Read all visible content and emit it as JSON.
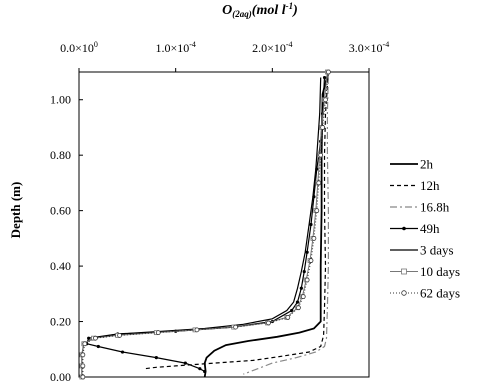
{
  "chart_data": {
    "type": "line",
    "title_main": "O",
    "title_sub": "(2aq)",
    "title_unit": "(mol l",
    "title_exp": "-1",
    "title_close": ")",
    "ylabel": "Depth (m)",
    "xlim": [
      0,
      0.0003
    ],
    "ylim": [
      0,
      1.1
    ],
    "x_ticks": [
      {
        "value": 0,
        "mant": "0.0×10",
        "exp": "0"
      },
      {
        "value": 0.0001,
        "mant": "1.0×10",
        "exp": "-4"
      },
      {
        "value": 0.0002,
        "mant": "2.0×10",
        "exp": "-4"
      },
      {
        "value": 0.0003,
        "mant": "3.0×10",
        "exp": "-4"
      }
    ],
    "y_ticks": [
      {
        "value": 0.0,
        "label": "0.00"
      },
      {
        "value": 0.2,
        "label": "0.20"
      },
      {
        "value": 0.4,
        "label": "0.40"
      },
      {
        "value": 0.6,
        "label": "0.60"
      },
      {
        "value": 0.8,
        "label": "0.80"
      },
      {
        "value": 1.0,
        "label": "1.00"
      }
    ],
    "legend_position": "right",
    "series": [
      {
        "name": "2h",
        "color": "#000000",
        "width": 1.8,
        "dash": "",
        "marker": "none",
        "points": [
          [
            0.000258,
            1.1
          ],
          [
            0.000252,
            1.02
          ],
          [
            0.000251,
            0.8
          ],
          [
            0.000251,
            0.6
          ],
          [
            0.00025,
            0.4
          ],
          [
            0.00025,
            0.25
          ],
          [
            0.00025,
            0.2
          ],
          [
            0.000243,
            0.175
          ],
          [
            0.000228,
            0.16
          ],
          [
            0.000205,
            0.145
          ],
          [
            0.000175,
            0.13
          ],
          [
            0.000152,
            0.115
          ],
          [
            0.00014,
            0.095
          ],
          [
            0.000132,
            0.07
          ],
          [
            0.00013,
            0.05
          ],
          [
            0.000131,
            0.02
          ],
          [
            0.00013,
            0.0
          ]
        ]
      },
      {
        "name": "12h",
        "color": "#000000",
        "width": 1.2,
        "dash": "4,3",
        "marker": "none",
        "points": [
          [
            0.000258,
            1.1
          ],
          [
            0.000255,
            0.95
          ],
          [
            0.000254,
            0.8
          ],
          [
            0.000254,
            0.6
          ],
          [
            0.000255,
            0.4
          ],
          [
            0.000254,
            0.25
          ],
          [
            0.000253,
            0.15
          ],
          [
            0.00025,
            0.11
          ],
          [
            0.000238,
            0.09
          ],
          [
            0.00021,
            0.075
          ],
          [
            0.00018,
            0.06
          ],
          [
            0.00014,
            0.05
          ],
          [
            0.0001,
            0.04
          ],
          [
            8e-05,
            0.035
          ],
          [
            6.8e-05,
            0.03
          ]
        ]
      },
      {
        "name": "16.8h",
        "color": "#888888",
        "width": 1.2,
        "dash": "7,3,2,3",
        "marker": "none",
        "points": [
          [
            0.000258,
            1.1
          ],
          [
            0.000257,
            0.95
          ],
          [
            0.000257,
            0.8
          ],
          [
            0.000258,
            0.6
          ],
          [
            0.000258,
            0.4
          ],
          [
            0.000257,
            0.25
          ],
          [
            0.000256,
            0.14
          ],
          [
            0.000254,
            0.11
          ],
          [
            0.000245,
            0.09
          ],
          [
            0.000225,
            0.07
          ],
          [
            0.0002,
            0.05
          ],
          [
            0.000185,
            0.03
          ],
          [
            0.00017,
            0.01
          ]
        ]
      },
      {
        "name": "49h",
        "color": "#000000",
        "width": 1.2,
        "dash": "",
        "marker": "dot",
        "points": [
          [
            0.000254,
            1.08
          ],
          [
            0.000252,
            0.95
          ],
          [
            0.00025,
            0.85
          ],
          [
            0.000246,
            0.75
          ],
          [
            0.000243,
            0.65
          ],
          [
            0.00024,
            0.55
          ],
          [
            0.000236,
            0.45
          ],
          [
            0.000233,
            0.38
          ],
          [
            0.00023,
            0.32
          ],
          [
            0.000226,
            0.27
          ],
          [
            0.00022,
            0.24
          ],
          [
            0.0002,
            0.2
          ],
          [
            0.00016,
            0.18
          ],
          [
            0.0001,
            0.165
          ],
          [
            4e-05,
            0.155
          ],
          [
            1e-05,
            0.14
          ],
          [
            8e-06,
            0.12
          ],
          [
            2e-05,
            0.11
          ],
          [
            4.5e-05,
            0.09
          ],
          [
            8e-05,
            0.07
          ],
          [
            0.00011,
            0.05
          ],
          [
            0.000125,
            0.03
          ],
          [
            0.00013,
            0.02
          ]
        ]
      },
      {
        "name": "3 days",
        "color": "#000000",
        "width": 1.2,
        "dash": "",
        "marker": "none",
        "points": [
          [
            0.00025,
            1.08
          ],
          [
            0.000249,
            0.95
          ],
          [
            0.000247,
            0.85
          ],
          [
            0.000245,
            0.75
          ],
          [
            0.000242,
            0.65
          ],
          [
            0.000238,
            0.55
          ],
          [
            0.000234,
            0.45
          ],
          [
            0.00023,
            0.38
          ],
          [
            0.000226,
            0.32
          ],
          [
            0.000222,
            0.27
          ],
          [
            0.000215,
            0.24
          ],
          [
            0.0002,
            0.21
          ],
          [
            0.00017,
            0.19
          ],
          [
            0.00013,
            0.175
          ],
          [
            8.5e-05,
            0.165
          ],
          [
            4e-05,
            0.155
          ],
          [
            1.5e-05,
            0.14
          ],
          [
            5e-06,
            0.12
          ],
          [
            3e-06,
            0.08
          ],
          [
            3e-06,
            0.0
          ]
        ]
      },
      {
        "name": "10 days",
        "color": "#777777",
        "width": 1.0,
        "dash": "",
        "marker": "square",
        "points": [
          [
            0.000257,
            1.1
          ],
          [
            0.000254,
            1.0
          ],
          [
            0.000251,
            0.9
          ],
          [
            0.000249,
            0.8
          ],
          [
            0.000247,
            0.7
          ],
          [
            0.000245,
            0.6
          ],
          [
            0.000242,
            0.5
          ],
          [
            0.000239,
            0.42
          ],
          [
            0.000235,
            0.35
          ],
          [
            0.000231,
            0.29
          ],
          [
            0.000226,
            0.25
          ],
          [
            0.000215,
            0.215
          ],
          [
            0.000195,
            0.195
          ],
          [
            0.00016,
            0.18
          ],
          [
            0.00012,
            0.17
          ],
          [
            8e-05,
            0.16
          ],
          [
            4e-05,
            0.15
          ],
          [
            1.5e-05,
            0.14
          ],
          [
            5e-06,
            0.12
          ],
          [
            3e-06,
            0.08
          ],
          [
            3e-06,
            0.04
          ],
          [
            3e-06,
            0.0
          ]
        ]
      },
      {
        "name": "62 days",
        "color": "#333333",
        "width": 1.0,
        "dash": "1,2",
        "marker": "circle",
        "points": [
          [
            0.000258,
            1.1
          ],
          [
            0.000255,
            1.0
          ],
          [
            0.000252,
            0.9
          ],
          [
            0.00025,
            0.8
          ],
          [
            0.000248,
            0.7
          ],
          [
            0.000246,
            0.6
          ],
          [
            0.000243,
            0.5
          ],
          [
            0.00024,
            0.42
          ],
          [
            0.000236,
            0.35
          ],
          [
            0.000232,
            0.29
          ],
          [
            0.000227,
            0.25
          ],
          [
            0.000216,
            0.215
          ],
          [
            0.000196,
            0.195
          ],
          [
            0.000162,
            0.18
          ],
          [
            0.000122,
            0.17
          ],
          [
            8.2e-05,
            0.16
          ],
          [
            4.2e-05,
            0.15
          ],
          [
            1.7e-05,
            0.14
          ],
          [
            6e-06,
            0.12
          ],
          [
            4e-06,
            0.08
          ],
          [
            4e-06,
            0.04
          ],
          [
            4e-06,
            0.0
          ]
        ]
      }
    ]
  }
}
